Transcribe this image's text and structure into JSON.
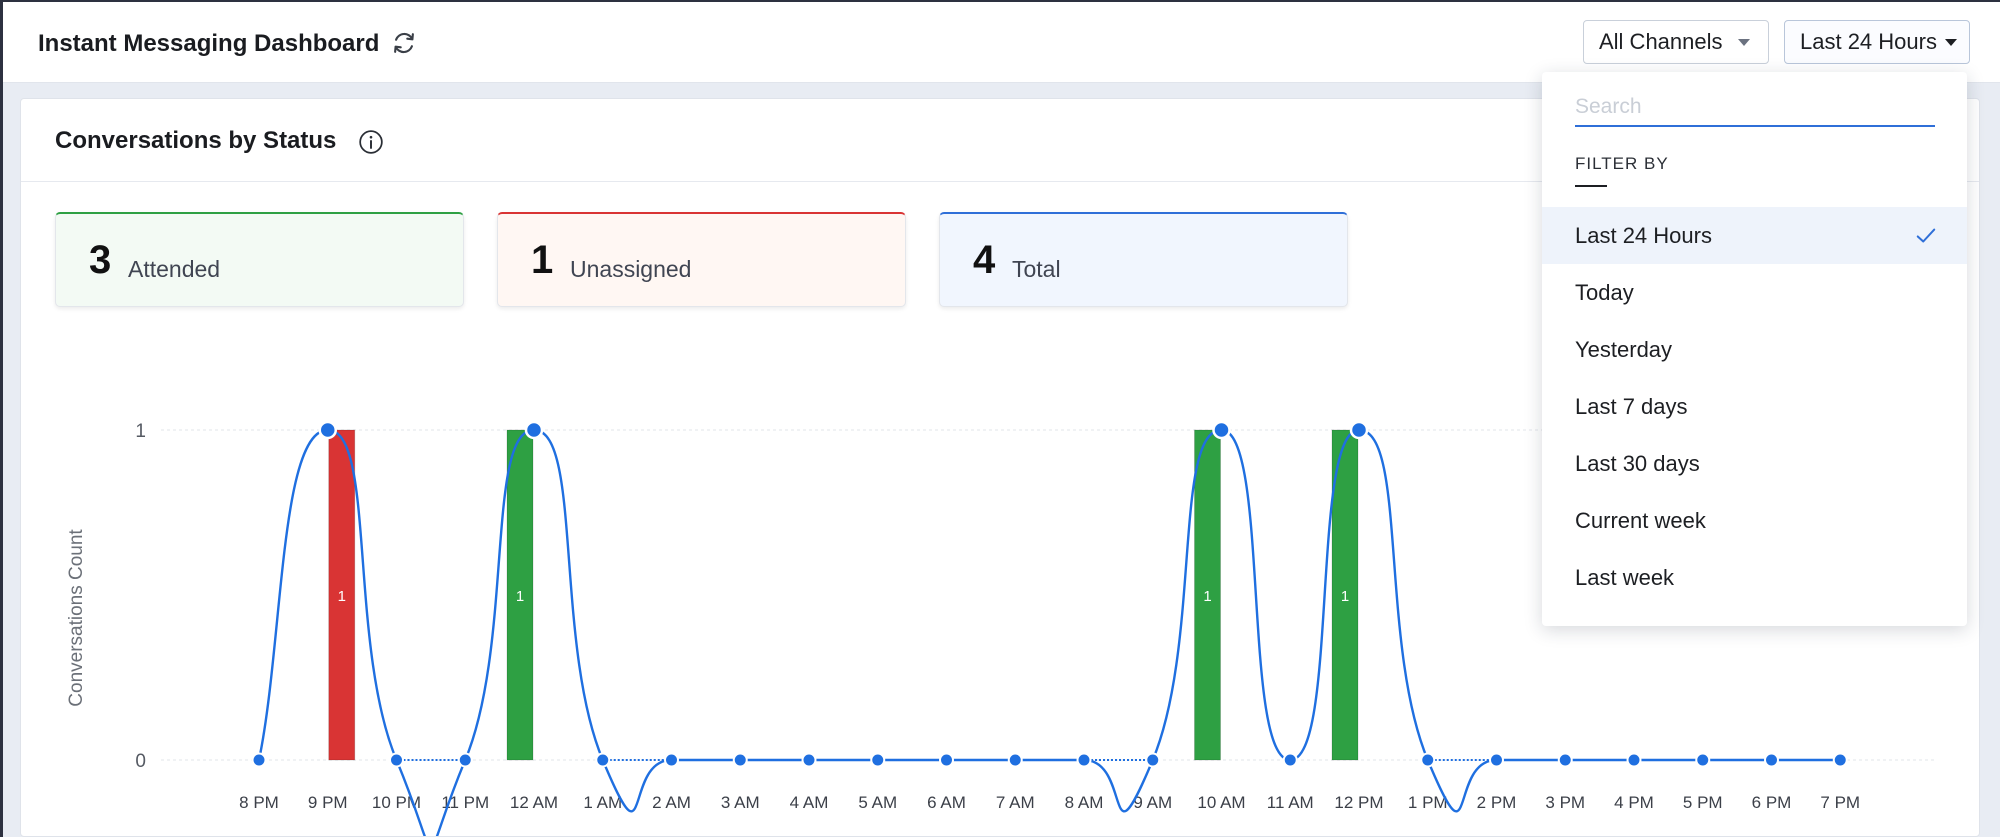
{
  "header": {
    "title": "Instant Messaging Dashboard",
    "channel_filter": "All Channels",
    "period_filter": "Last 24 Hours"
  },
  "card": {
    "title": "Conversations by Status"
  },
  "stats": [
    {
      "value": "3",
      "label": "Attended"
    },
    {
      "value": "1",
      "label": "Unassigned"
    },
    {
      "value": "4",
      "label": "Total"
    }
  ],
  "colors": {
    "attended": "#2ea043",
    "unassigned": "#d93434",
    "total_line": "#1f6fe0"
  },
  "dropdown": {
    "search_placeholder": "Search",
    "filter_heading": "FILTER BY",
    "options": [
      "Last 24 Hours",
      "Today",
      "Yesterday",
      "Last 7 days",
      "Last 30 days",
      "Current week",
      "Last week"
    ],
    "selected_index": 0
  },
  "chart_data": {
    "type": "bar",
    "ylabel": "Conversations Count",
    "y_ticks": [
      "0",
      "1"
    ],
    "ylim": [
      0,
      1
    ],
    "categories": [
      "8 PM",
      "9 PM",
      "10 PM",
      "11 PM",
      "12 AM",
      "1 AM",
      "2 AM",
      "3 AM",
      "4 AM",
      "5 AM",
      "6 AM",
      "7 AM",
      "8 AM",
      "9 AM",
      "10 AM",
      "11 AM",
      "12 PM",
      "1 PM",
      "2 PM",
      "3 PM",
      "4 PM",
      "5 PM",
      "6 PM",
      "7 PM"
    ],
    "series": [
      {
        "type": "bar",
        "values": [
          0,
          0,
          0,
          0,
          1,
          0,
          0,
          0,
          0,
          0,
          0,
          0,
          0,
          0,
          1,
          0,
          1,
          0,
          0,
          0,
          0,
          0,
          0,
          0
        ]
      },
      {
        "type": "bar",
        "values": [
          0,
          1,
          0,
          0,
          0,
          0,
          0,
          0,
          0,
          0,
          0,
          0,
          0,
          0,
          0,
          0,
          0,
          0,
          0,
          0,
          0,
          0,
          0,
          0
        ]
      },
      {
        "type": "line",
        "values": [
          0,
          1,
          0,
          0,
          1,
          0,
          0,
          0,
          0,
          0,
          0,
          0,
          0,
          0,
          1,
          0,
          1,
          0,
          0,
          0,
          0,
          0,
          0,
          0
        ]
      }
    ],
    "grid": true
  }
}
